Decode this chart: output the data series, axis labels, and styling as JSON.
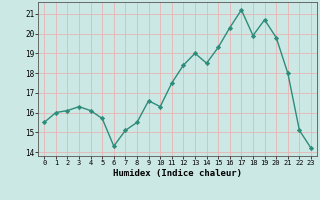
{
  "x": [
    0,
    1,
    2,
    3,
    4,
    5,
    6,
    7,
    8,
    9,
    10,
    11,
    12,
    13,
    14,
    15,
    16,
    17,
    18,
    19,
    20,
    21,
    22,
    23
  ],
  "y": [
    15.5,
    16.0,
    16.1,
    16.3,
    16.1,
    15.7,
    14.3,
    15.1,
    15.5,
    16.6,
    16.3,
    17.5,
    18.4,
    19.0,
    18.5,
    19.3,
    20.3,
    21.2,
    19.9,
    20.7,
    19.8,
    18.0,
    15.1,
    14.2
  ],
  "xlabel": "Humidex (Indice chaleur)",
  "ylim": [
    13.8,
    21.6
  ],
  "xlim": [
    -0.5,
    23.5
  ],
  "yticks": [
    14,
    15,
    16,
    17,
    18,
    19,
    20,
    21
  ],
  "xtick_labels": [
    "0",
    "1",
    "2",
    "3",
    "4",
    "5",
    "6",
    "7",
    "8",
    "9",
    "10",
    "11",
    "12",
    "13",
    "14",
    "15",
    "16",
    "17",
    "18",
    "19",
    "20",
    "21",
    "22",
    "23"
  ],
  "line_color": "#2d8c7a",
  "marker_color": "#2d8c7a",
  "bg_color": "#cce8e5",
  "grid_color": "#e8b4b4",
  "axis_color": "#555555",
  "label_color": "#000000"
}
